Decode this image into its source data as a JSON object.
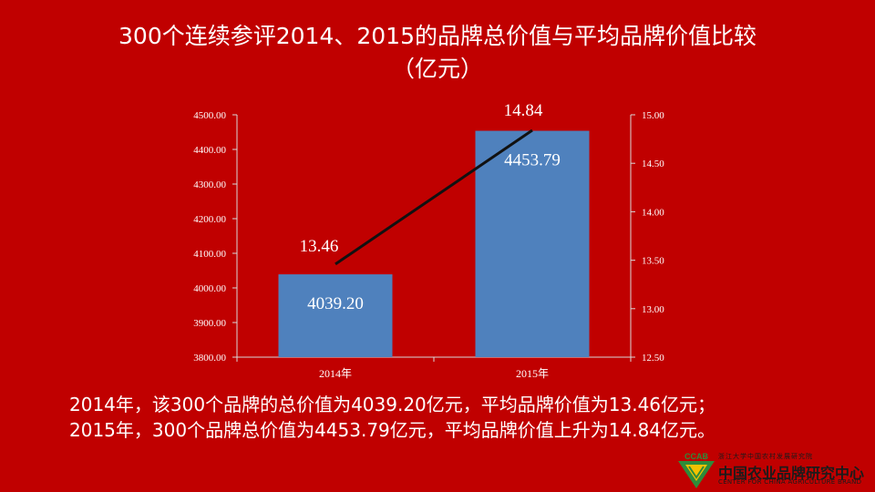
{
  "title": {
    "line1": "300个连续参评2014、2015的品牌总价值与平均品牌价值比较",
    "line2": "（亿元）"
  },
  "chart_data": {
    "type": "bar",
    "categories": [
      "2014年",
      "2015年"
    ],
    "series": [
      {
        "type": "bar",
        "axis": "left",
        "values": [
          4039.2,
          4453.79
        ],
        "labels": [
          "4039.20",
          "4453.79"
        ],
        "color": "#4f81bd"
      },
      {
        "type": "line",
        "axis": "right",
        "values": [
          13.46,
          14.84
        ],
        "labels": [
          "13.46",
          "14.84"
        ],
        "color": "#111111"
      }
    ],
    "ylim_left": [
      3800,
      4500
    ],
    "yticks_left": [
      "3800.00",
      "3900.00",
      "4000.00",
      "4100.00",
      "4200.00",
      "4300.00",
      "4400.00",
      "4500.00"
    ],
    "ylim_right": [
      12.5,
      15.0
    ],
    "yticks_right": [
      "12.50",
      "13.00",
      "13.50",
      "14.00",
      "14.50",
      "15.00"
    ],
    "grid": false,
    "axis_color": "#d9d9d9"
  },
  "summary": {
    "line1": "2014年，该300个品牌的总价值为4039.20亿元，平均品牌价值为13.46亿元；",
    "line2": "2015年，300个品牌总价值为4453.79亿元，平均品牌价值上升为14.84亿元。"
  },
  "logo": {
    "abbr": "CCAB",
    "top_text": "浙江大学中国农村发展研究院",
    "cn_name": "中国农业品牌研究中心",
    "en_name": "CENTER FOR CHINA AGRICULTURE BRAND",
    "colors": {
      "green": "#2e8b3a",
      "yellow": "#f2c200"
    }
  }
}
